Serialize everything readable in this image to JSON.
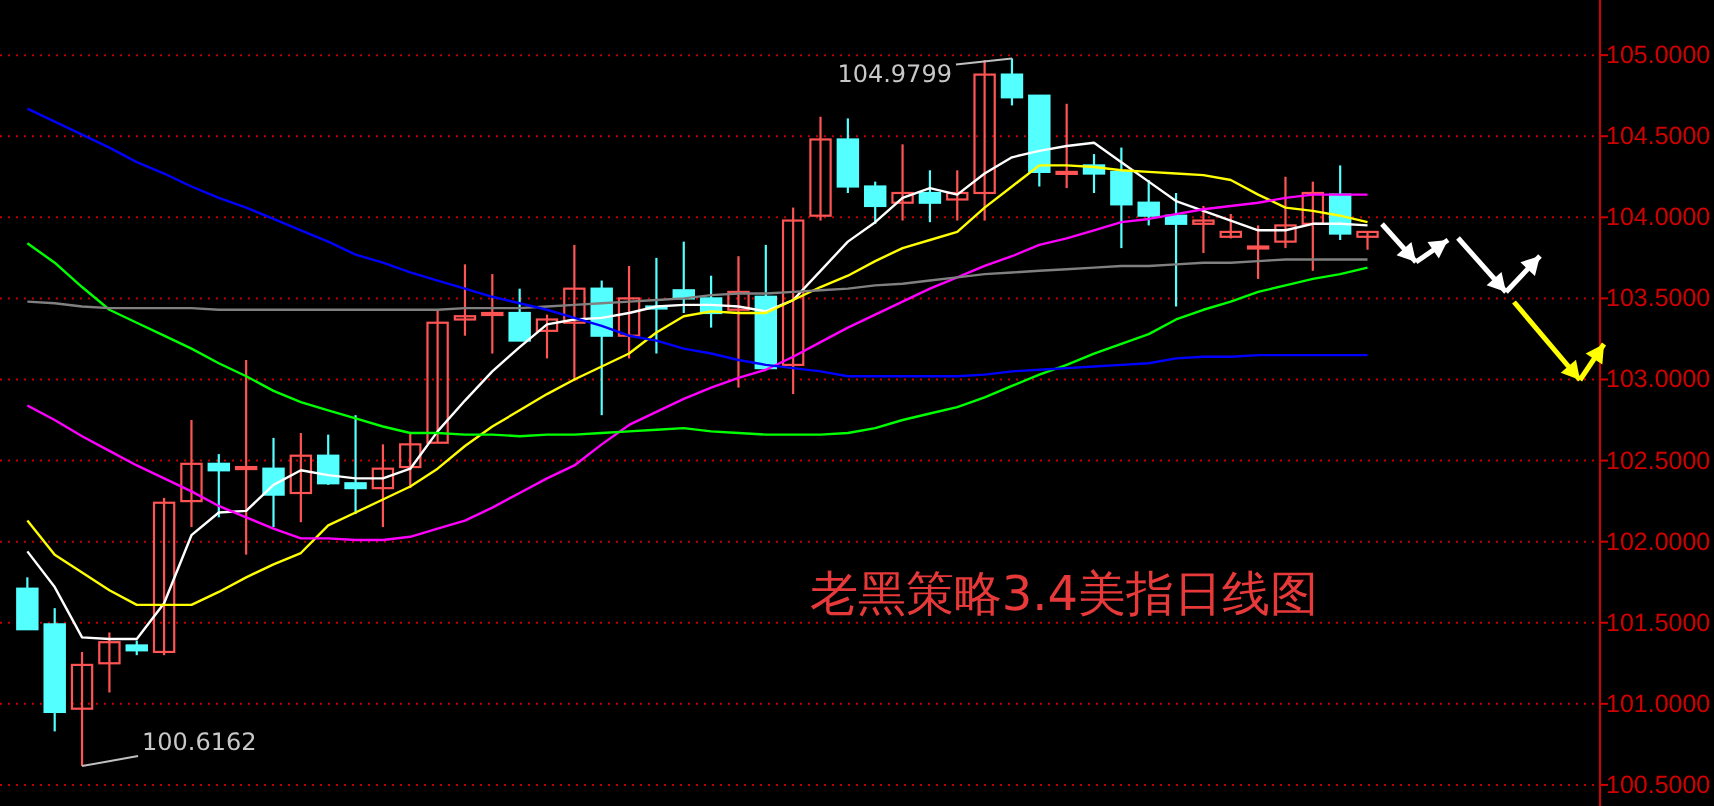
{
  "chart_data": {
    "type": "candlestick",
    "title": "老黑策略3.4美指日线图",
    "categories": [
      null,
      null,
      null,
      null,
      null,
      null,
      null,
      null,
      null,
      null,
      null,
      null,
      null,
      null,
      null,
      null,
      null,
      null,
      null,
      null,
      null,
      null,
      null,
      null,
      null,
      null,
      null,
      null,
      null,
      null,
      null,
      null,
      null,
      null,
      null,
      null,
      null,
      null,
      null,
      null,
      null,
      null,
      null,
      null,
      null,
      null,
      null,
      null,
      null,
      null
    ],
    "ohlc": [
      [
        101.71,
        101.78,
        101.46,
        101.46
      ],
      [
        101.49,
        101.59,
        100.83,
        100.95
      ],
      [
        100.97,
        101.32,
        100.6162,
        101.24
      ],
      [
        101.25,
        101.44,
        101.07,
        101.38
      ],
      [
        101.36,
        101.39,
        101.3,
        101.33
      ],
      [
        101.32,
        102.27,
        101.3,
        102.24
      ],
      [
        102.25,
        102.75,
        102.09,
        102.48
      ],
      [
        102.48,
        102.54,
        102.15,
        102.44
      ],
      [
        102.45,
        103.12,
        101.92,
        102.46
      ],
      [
        102.45,
        102.64,
        102.09,
        102.29
      ],
      [
        102.3,
        102.67,
        102.12,
        102.53
      ],
      [
        102.53,
        102.66,
        102.35,
        102.36
      ],
      [
        102.36,
        102.78,
        102.17,
        102.33
      ],
      [
        102.33,
        102.6,
        102.09,
        102.45
      ],
      [
        102.46,
        102.67,
        102.33,
        102.6
      ],
      [
        102.61,
        103.43,
        102.61,
        103.35
      ],
      [
        103.37,
        103.71,
        103.27,
        103.39
      ],
      [
        103.4,
        103.65,
        103.16,
        103.41
      ],
      [
        103.41,
        103.56,
        103.24,
        103.24
      ],
      [
        103.3,
        103.4,
        103.13,
        103.37
      ],
      [
        103.35,
        103.83,
        102.99,
        103.56
      ],
      [
        103.56,
        103.61,
        102.78,
        103.27
      ],
      [
        103.27,
        103.7,
        103.13,
        103.5
      ],
      [
        103.45,
        103.75,
        103.16,
        103.44
      ],
      [
        103.55,
        103.85,
        103.41,
        103.5
      ],
      [
        103.5,
        103.64,
        103.32,
        103.41
      ],
      [
        103.43,
        103.76,
        102.95,
        103.54
      ],
      [
        103.51,
        103.83,
        103.07,
        103.07
      ],
      [
        103.09,
        104.06,
        102.91,
        103.98
      ],
      [
        104.01,
        104.62,
        103.98,
        104.48
      ],
      [
        104.48,
        104.61,
        104.15,
        104.19
      ],
      [
        104.19,
        104.22,
        103.96,
        104.07
      ],
      [
        104.09,
        104.45,
        103.98,
        104.15
      ],
      [
        104.15,
        104.29,
        103.97,
        104.09
      ],
      [
        104.11,
        104.29,
        103.98,
        104.15
      ],
      [
        104.15,
        104.97,
        103.98,
        104.88
      ],
      [
        104.88,
        104.9799,
        104.69,
        104.74
      ],
      [
        104.75,
        104.75,
        104.19,
        104.28
      ],
      [
        104.27,
        104.7,
        104.18,
        104.28
      ],
      [
        104.32,
        104.39,
        104.15,
        104.27
      ],
      [
        104.28,
        104.43,
        103.81,
        104.08
      ],
      [
        104.09,
        104.23,
        103.95,
        104.01
      ],
      [
        104.01,
        104.15,
        103.45,
        103.96
      ],
      [
        103.96,
        104.07,
        103.78,
        103.98
      ],
      [
        103.88,
        104.02,
        103.87,
        103.91
      ],
      [
        103.81,
        103.95,
        103.62,
        103.82
      ],
      [
        103.85,
        104.25,
        103.81,
        103.95
      ],
      [
        103.96,
        104.22,
        103.67,
        104.15
      ],
      [
        104.14,
        104.32,
        103.86,
        103.9
      ],
      [
        103.88,
        103.91,
        103.8,
        103.91
      ]
    ],
    "colors": [
      "#54ffff",
      "#54ffff",
      "#ff5454",
      "#ff5454",
      "#54ffff",
      "#ff5454",
      "#ff5454",
      "#54ffff",
      "#ff5454",
      "#54ffff",
      "#ff5454",
      "#54ffff",
      "#54ffff",
      "#ff5454",
      "#ff5454",
      "#ff5454",
      "#ff5454",
      "#ff5454",
      "#54ffff",
      "#ff5454",
      "#ff5454",
      "#54ffff",
      "#ff5454",
      "#54ffff",
      "#54ffff",
      "#54ffff",
      "#ff5454",
      "#54ffff",
      "#ff5454",
      "#ff5454",
      "#54ffff",
      "#54ffff",
      "#ff5454",
      "#54ffff",
      "#ff5454",
      "#ff5454",
      "#54ffff",
      "#54ffff",
      "#ff5454",
      "#54ffff",
      "#54ffff",
      "#54ffff",
      "#54ffff",
      "#ff5454",
      "#ff5454",
      "#ff5454",
      "#ff5454",
      "#ff5454",
      "#54ffff",
      "#ff5454"
    ],
    "series": [
      {
        "type": "line",
        "color": "#ffffff",
        "values": [
          101.94,
          101.72,
          101.41,
          101.4,
          101.4,
          101.62,
          102.04,
          102.18,
          102.19,
          102.35,
          102.44,
          102.41,
          102.39,
          102.39,
          102.45,
          102.68,
          102.87,
          103.05,
          103.2,
          103.34,
          103.37,
          103.38,
          103.41,
          103.45,
          103.46,
          103.46,
          103.45,
          103.42,
          103.49,
          103.67,
          103.85,
          103.97,
          104.12,
          104.18,
          104.14,
          104.27,
          104.37,
          104.41,
          104.44,
          104.46,
          104.34,
          104.22,
          104.1,
          104.04,
          103.98,
          103.92,
          103.92,
          103.96,
          103.96,
          103.95
        ]
      },
      {
        "type": "line",
        "color": "#ffff00",
        "values": [
          102.13,
          101.92,
          101.81,
          101.7,
          101.61,
          101.61,
          101.61,
          101.69,
          101.78,
          101.86,
          101.93,
          102.1,
          102.18,
          102.26,
          102.34,
          102.45,
          102.59,
          102.71,
          102.81,
          102.91,
          103.0,
          103.08,
          103.16,
          103.29,
          103.39,
          103.42,
          103.41,
          103.41,
          103.49,
          103.57,
          103.64,
          103.73,
          103.81,
          103.86,
          103.91,
          104.06,
          104.19,
          104.32,
          104.32,
          104.31,
          104.29,
          104.28,
          104.27,
          104.26,
          104.23,
          104.14,
          104.06,
          104.04,
          104.01,
          103.97
        ]
      },
      {
        "type": "line",
        "color": "#ff00ff",
        "values": [
          102.84,
          102.75,
          102.65,
          102.56,
          102.47,
          102.39,
          102.31,
          102.22,
          102.15,
          102.08,
          102.02,
          102.02,
          102.01,
          102.01,
          102.03,
          102.08,
          102.13,
          102.21,
          102.3,
          102.39,
          102.47,
          102.6,
          102.72,
          102.8,
          102.88,
          102.95,
          103.01,
          103.06,
          103.14,
          103.23,
          103.32,
          103.4,
          103.48,
          103.56,
          103.63,
          103.7,
          103.76,
          103.83,
          103.87,
          103.92,
          103.97,
          103.99,
          104.02,
          104.05,
          104.07,
          104.09,
          104.12,
          104.14,
          104.14,
          104.14
        ]
      },
      {
        "type": "line",
        "color": "#00ff00",
        "values": [
          103.84,
          103.72,
          103.57,
          103.43,
          103.35,
          103.27,
          103.19,
          103.1,
          103.02,
          102.93,
          102.86,
          102.81,
          102.76,
          102.71,
          102.67,
          102.67,
          102.66,
          102.66,
          102.65,
          102.66,
          102.66,
          102.67,
          102.68,
          102.69,
          102.7,
          102.68,
          102.67,
          102.66,
          102.66,
          102.66,
          102.67,
          102.7,
          102.75,
          102.79,
          102.83,
          102.89,
          102.96,
          103.03,
          103.09,
          103.16,
          103.22,
          103.28,
          103.37,
          103.43,
          103.48,
          103.54,
          103.58,
          103.62,
          103.65,
          103.69
        ]
      },
      {
        "type": "line",
        "color": "#808080",
        "values": [
          103.48,
          103.47,
          103.45,
          103.44,
          103.44,
          103.44,
          103.44,
          103.43,
          103.43,
          103.43,
          103.43,
          103.43,
          103.43,
          103.43,
          103.43,
          103.43,
          103.44,
          103.44,
          103.44,
          103.45,
          103.46,
          103.47,
          103.48,
          103.49,
          103.5,
          103.52,
          103.53,
          103.53,
          103.54,
          103.55,
          103.56,
          103.58,
          103.59,
          103.61,
          103.63,
          103.65,
          103.66,
          103.67,
          103.68,
          103.69,
          103.7,
          103.7,
          103.71,
          103.72,
          103.72,
          103.73,
          103.74,
          103.74,
          103.74,
          103.74
        ]
      },
      {
        "type": "line",
        "color": "#0000ff",
        "values": [
          104.67,
          104.59,
          104.51,
          104.43,
          104.34,
          104.27,
          104.19,
          104.12,
          104.06,
          103.99,
          103.92,
          103.85,
          103.77,
          103.72,
          103.66,
          103.61,
          103.56,
          103.51,
          103.47,
          103.43,
          103.38,
          103.33,
          103.27,
          103.24,
          103.19,
          103.16,
          103.12,
          103.09,
          103.07,
          103.05,
          103.02,
          103.02,
          103.02,
          103.02,
          103.02,
          103.03,
          103.05,
          103.06,
          103.07,
          103.08,
          103.09,
          103.1,
          103.13,
          103.14,
          103.14,
          103.15,
          103.15,
          103.15,
          103.15,
          103.15
        ]
      }
    ],
    "ylim": [
      100.37,
      105.34
    ],
    "yticks": [
      {
        "value": 100.5,
        "label": "100.5000"
      },
      {
        "value": 101,
        "label": "101.0000"
      },
      {
        "value": 101.5,
        "label": "101.5000"
      },
      {
        "value": 102,
        "label": "102.0000"
      },
      {
        "value": 102.5,
        "label": "102.5000"
      },
      {
        "value": 103,
        "label": "103.0000"
      },
      {
        "value": 103.5,
        "label": "103.5000"
      },
      {
        "value": 104,
        "label": "104.0000"
      },
      {
        "value": 104.5,
        "label": "104.5000"
      },
      {
        "value": 105,
        "label": "105.0000"
      }
    ],
    "grid": "y",
    "tick_labels": "y",
    "annotations": [
      "104.9799",
      "100.6162"
    ]
  }
}
